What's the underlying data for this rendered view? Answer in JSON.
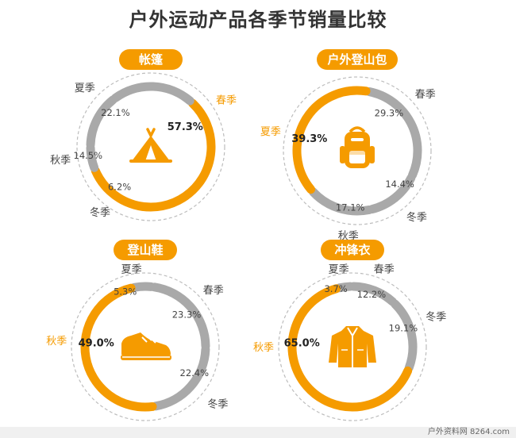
{
  "title": "户外运动产品各季节销量比较",
  "watermark": "户外资料网 8264.com",
  "colors": {
    "highlight": "#F59B00",
    "base": "#A9A9A9",
    "dash": "#BDBDBD",
    "text": "#444444"
  },
  "chart_data": [
    {
      "type": "pie",
      "title": "帐篷",
      "icon": "tent-icon",
      "slices": [
        {
          "label": "春季",
          "value": 57.3,
          "value_label": "57.3%",
          "highlight": true
        },
        {
          "label": "冬季",
          "value": 6.2,
          "value_label": "6.2%",
          "highlight": false
        },
        {
          "label": "秋季",
          "value": 14.5,
          "value_label": "14.5%",
          "highlight": false
        },
        {
          "label": "夏季",
          "value": 22.1,
          "value_label": "22.1%",
          "highlight": false
        }
      ]
    },
    {
      "type": "pie",
      "title": "户外登山包",
      "icon": "backpack-icon",
      "slices": [
        {
          "label": "春季",
          "value": 29.3,
          "value_label": "29.3%",
          "highlight": false
        },
        {
          "label": "冬季",
          "value": 14.4,
          "value_label": "14.4%",
          "highlight": false
        },
        {
          "label": "秋季",
          "value": 17.1,
          "value_label": "17.1%",
          "highlight": false
        },
        {
          "label": "夏季",
          "value": 39.3,
          "value_label": "39.3%",
          "highlight": true
        }
      ]
    },
    {
      "type": "pie",
      "title": "登山鞋",
      "icon": "shoe-icon",
      "slices": [
        {
          "label": "夏季",
          "value": 5.3,
          "value_label": "5.3%",
          "highlight": false
        },
        {
          "label": "春季",
          "value": 23.3,
          "value_label": "23.3%",
          "highlight": false
        },
        {
          "label": "冬季",
          "value": 22.4,
          "value_label": "22.4%",
          "highlight": false
        },
        {
          "label": "秋季",
          "value": 49.0,
          "value_label": "49.0%",
          "highlight": true
        }
      ]
    },
    {
      "type": "pie",
      "title": "冲锋衣",
      "icon": "jacket-icon",
      "slices": [
        {
          "label": "夏季",
          "value": 3.7,
          "value_label": "3.7%",
          "highlight": false
        },
        {
          "label": "春季",
          "value": 12.2,
          "value_label": "12.2%",
          "highlight": false
        },
        {
          "label": "冬季",
          "value": 19.1,
          "value_label": "19.1%",
          "highlight": false
        },
        {
          "label": "秋季",
          "value": 65.0,
          "value_label": "65.0%",
          "highlight": true
        }
      ]
    }
  ]
}
